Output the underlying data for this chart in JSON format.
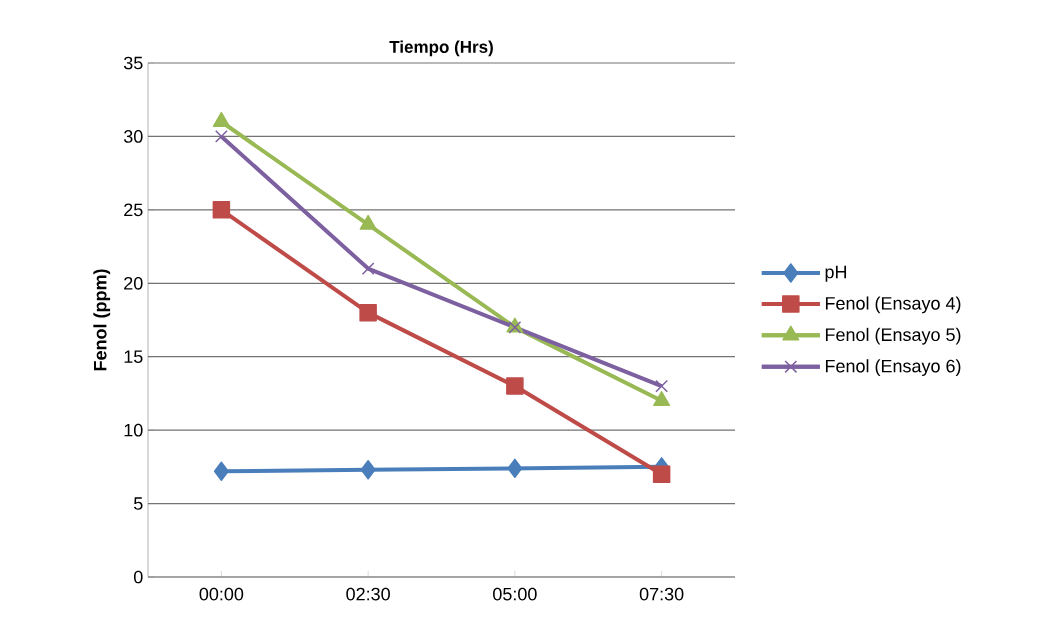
{
  "chart_data": {
    "type": "line",
    "title": "Tiempo (Hrs)",
    "ylabel": "Fenol (ppm)",
    "categories": [
      "00:00",
      "02:30",
      "05:00",
      "07:30"
    ],
    "series": [
      {
        "name": "pH",
        "color": "#4a7ebb",
        "marker": "diamond",
        "values": [
          7.2,
          7.3,
          7.4,
          7.5
        ]
      },
      {
        "name": "Fenol (Ensayo 4)",
        "color": "#be4b48",
        "marker": "square",
        "values": [
          25,
          18,
          13,
          7
        ]
      },
      {
        "name": "Fenol (Ensayo 5)",
        "color": "#98b954",
        "marker": "triangle",
        "values": [
          31,
          24,
          17,
          12
        ]
      },
      {
        "name": "Fenol (Ensayo 6)",
        "color": "#7d60a0",
        "marker": "cross",
        "values": [
          30,
          21,
          17,
          13
        ]
      }
    ],
    "ylim": [
      0,
      35
    ],
    "yticks": [
      0,
      5,
      10,
      15,
      20,
      25,
      30,
      35
    ],
    "grid": "y",
    "legend": "right",
    "line_style": "solid"
  }
}
